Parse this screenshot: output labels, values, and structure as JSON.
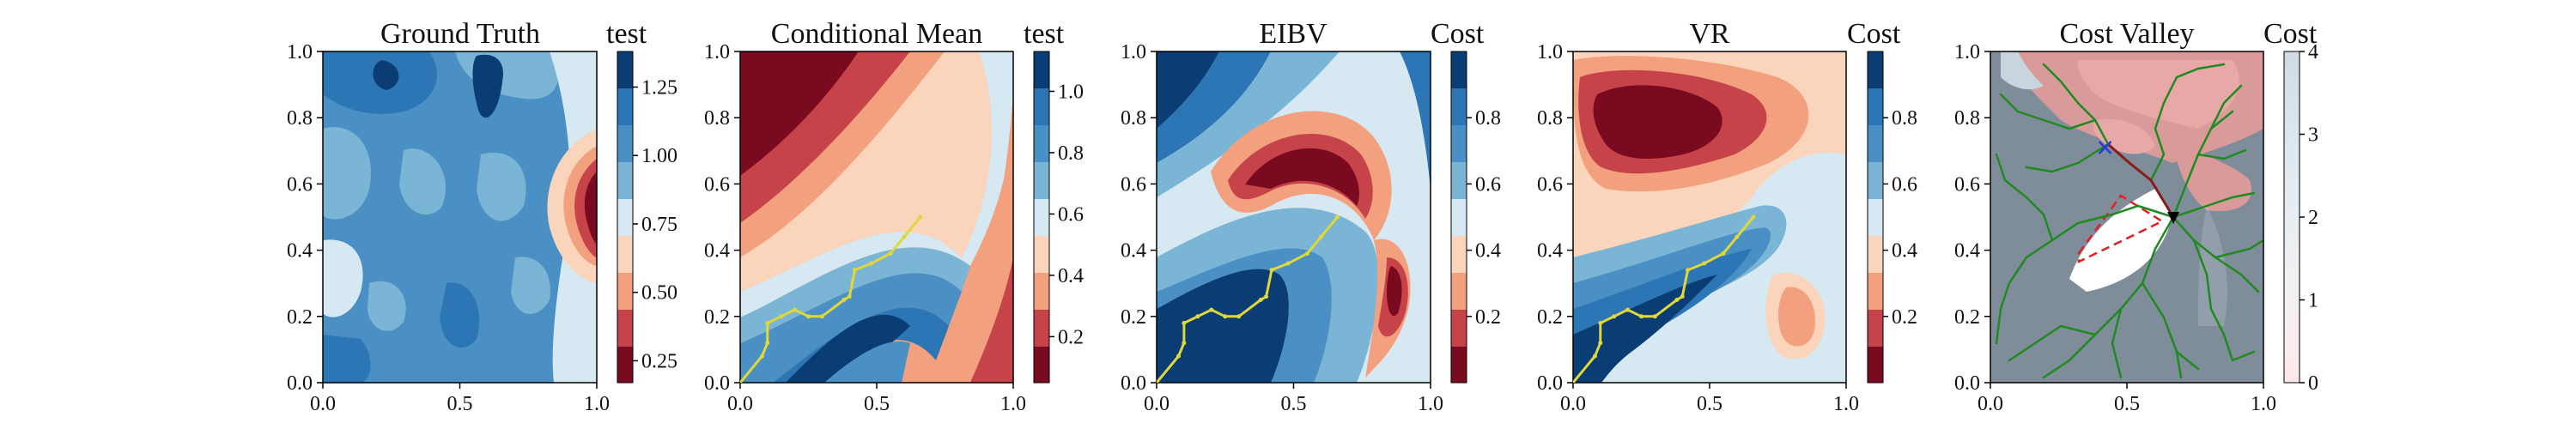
{
  "chart_data": [
    {
      "type": "heatmap",
      "title": "Ground Truth",
      "colorbar_label": "test",
      "xlim": [
        0,
        1
      ],
      "ylim": [
        0,
        1
      ],
      "x_ticks": [
        "0.0",
        "0.5",
        "1.0"
      ],
      "y_ticks": [
        "0.0",
        "0.2",
        "0.4",
        "0.6",
        "0.8",
        "1.0"
      ],
      "colorbar_range": [
        0.17,
        1.38
      ],
      "colorbar_ticks": [
        "0.25",
        "0.50",
        "0.75",
        "1.00",
        "1.25"
      ],
      "colorbar_tick_values": [
        0.25,
        0.5,
        0.75,
        1.0,
        1.25
      ],
      "colormap": "RdBu"
    },
    {
      "type": "heatmap",
      "title": "Conditional Mean",
      "colorbar_label": "test",
      "xlim": [
        0,
        1
      ],
      "ylim": [
        0,
        1
      ],
      "x_ticks": [
        "0.0",
        "0.5",
        "1.0"
      ],
      "y_ticks": [
        "0.0",
        "0.2",
        "0.4",
        "0.6",
        "0.8",
        "1.0"
      ],
      "colorbar_range": [
        0.05,
        1.13
      ],
      "colorbar_ticks": [
        "0.2",
        "0.4",
        "0.6",
        "0.8",
        "1.0"
      ],
      "colorbar_tick_values": [
        0.2,
        0.4,
        0.6,
        0.8,
        1.0
      ],
      "colormap": "RdBu",
      "path": [
        [
          0,
          0
        ],
        [
          0.08,
          0.08
        ],
        [
          0.1,
          0.12
        ],
        [
          0.1,
          0.18
        ],
        [
          0.15,
          0.2
        ],
        [
          0.2,
          0.22
        ],
        [
          0.25,
          0.2
        ],
        [
          0.3,
          0.2
        ],
        [
          0.38,
          0.25
        ],
        [
          0.4,
          0.26
        ],
        [
          0.42,
          0.34
        ],
        [
          0.48,
          0.36
        ],
        [
          0.55,
          0.39
        ],
        [
          0.6,
          0.44
        ],
        [
          0.66,
          0.5
        ]
      ],
      "path_color": "#e0d83a"
    },
    {
      "type": "heatmap",
      "title": "EIBV",
      "colorbar_label": "Cost",
      "xlim": [
        0,
        1
      ],
      "ylim": [
        0,
        1
      ],
      "x_ticks": [
        "0.0",
        "0.5",
        "1.0"
      ],
      "y_ticks": [
        "0.0",
        "0.2",
        "0.4",
        "0.6",
        "0.8",
        "1.0"
      ],
      "colorbar_range": [
        0,
        1
      ],
      "colorbar_ticks": [
        "0.2",
        "0.4",
        "0.6",
        "0.8"
      ],
      "colorbar_tick_values": [
        0.2,
        0.4,
        0.6,
        0.8
      ],
      "colormap": "RdBu",
      "path": [
        [
          0,
          0
        ],
        [
          0.08,
          0.08
        ],
        [
          0.1,
          0.12
        ],
        [
          0.1,
          0.18
        ],
        [
          0.15,
          0.2
        ],
        [
          0.2,
          0.22
        ],
        [
          0.25,
          0.2
        ],
        [
          0.3,
          0.2
        ],
        [
          0.38,
          0.25
        ],
        [
          0.4,
          0.26
        ],
        [
          0.42,
          0.34
        ],
        [
          0.48,
          0.36
        ],
        [
          0.55,
          0.39
        ],
        [
          0.6,
          0.44
        ],
        [
          0.66,
          0.5
        ]
      ],
      "path_color": "#e0d83a"
    },
    {
      "type": "heatmap",
      "title": "VR",
      "colorbar_label": "Cost",
      "xlim": [
        0,
        1
      ],
      "ylim": [
        0,
        1
      ],
      "x_ticks": [
        "0.0",
        "0.5",
        "1.0"
      ],
      "y_ticks": [
        "0.0",
        "0.2",
        "0.4",
        "0.6",
        "0.8",
        "1.0"
      ],
      "colorbar_range": [
        0,
        1
      ],
      "colorbar_ticks": [
        "0.2",
        "0.4",
        "0.6",
        "0.8"
      ],
      "colorbar_tick_values": [
        0.2,
        0.4,
        0.6,
        0.8
      ],
      "colormap": "RdBu",
      "path": [
        [
          0,
          0
        ],
        [
          0.08,
          0.08
        ],
        [
          0.1,
          0.12
        ],
        [
          0.1,
          0.18
        ],
        [
          0.15,
          0.2
        ],
        [
          0.2,
          0.22
        ],
        [
          0.25,
          0.2
        ],
        [
          0.3,
          0.2
        ],
        [
          0.38,
          0.25
        ],
        [
          0.4,
          0.26
        ],
        [
          0.42,
          0.34
        ],
        [
          0.48,
          0.36
        ],
        [
          0.55,
          0.39
        ],
        [
          0.6,
          0.44
        ],
        [
          0.66,
          0.5
        ]
      ],
      "path_color": "#e0d83a"
    },
    {
      "type": "heatmap",
      "title": "Cost Valley",
      "colorbar_label": "Cost",
      "xlim": [
        0,
        1
      ],
      "ylim": [
        0,
        1
      ],
      "x_ticks": [
        "0.0",
        "0.5",
        "1.0"
      ],
      "y_ticks": [
        "0.0",
        "0.2",
        "0.4",
        "0.6",
        "0.8",
        "1.0"
      ],
      "colorbar_range": [
        0,
        4
      ],
      "colorbar_ticks": [
        "0",
        "1",
        "2",
        "3",
        "4"
      ],
      "colorbar_tick_values": [
        0,
        1,
        2,
        3,
        4
      ],
      "colormap": "Reds",
      "current_location": [
        0.67,
        0.5
      ],
      "target_marker": [
        0.42,
        0.71
      ],
      "obstacle_polygon": [
        [
          0.33,
          0.42
        ],
        [
          0.48,
          0.6
        ],
        [
          0.62,
          0.5
        ],
        [
          0.33,
          0.38
        ]
      ],
      "tree_color": "#1f8a1f"
    }
  ]
}
